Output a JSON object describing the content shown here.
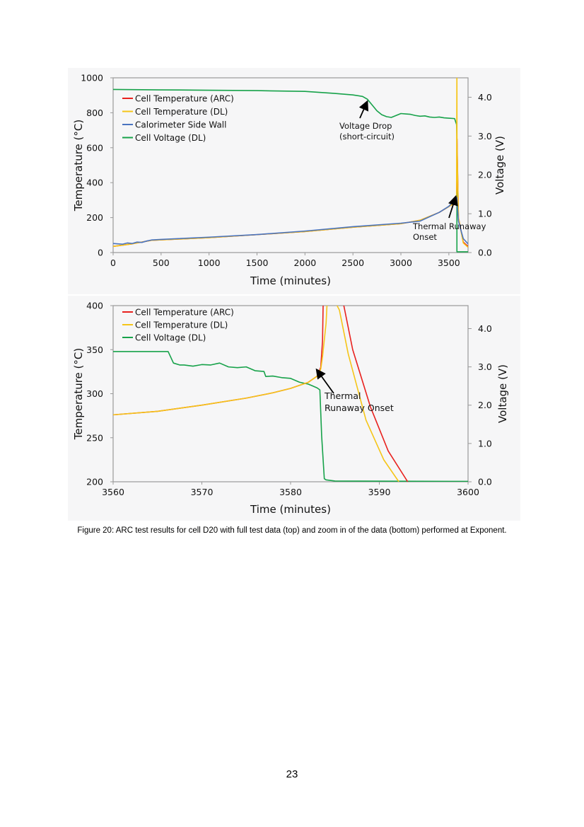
{
  "caption": "Figure 20: ARC test results for cell D20 with full test data (top) and zoom in of the data (bottom) performed at Exponent.",
  "page_number": "23",
  "chart_data": [
    {
      "type": "line",
      "name": "full-test",
      "xlabel": "Time (minutes)",
      "ylabel": "Temperature (°C)",
      "y2label": "Voltage (V)",
      "xlim": [
        0,
        3700
      ],
      "ylim": [
        0,
        1000
      ],
      "y2lim": [
        0,
        4.5
      ],
      "xticks": [
        0,
        500,
        1000,
        1500,
        2000,
        2500,
        3000,
        3500
      ],
      "yticks": [
        0,
        200,
        400,
        600,
        800,
        1000
      ],
      "y2ticks": [
        0,
        1,
        2,
        3,
        4
      ],
      "xtick_labels": [
        "0",
        "500",
        "1000",
        "1500",
        "2000",
        "2500",
        "3000",
        "3500"
      ],
      "ytick_labels": [
        "0",
        "200",
        "400",
        "600",
        "800",
        "1000"
      ],
      "y2tick_labels": [
        "0.0",
        "1.0",
        "2.0",
        "3.0",
        "4.0"
      ],
      "legend": [
        "Cell Temperature (ARC)",
        "Cell Temperature (DL)",
        "Calorimeter Side Wall",
        "Cell Voltage (DL)"
      ],
      "legend_position": "top-left",
      "colors": [
        "#e8211e",
        "#f5c518",
        "#4a74c0",
        "#17a24a"
      ],
      "series": [
        {
          "name": "Cell Temperature (ARC)",
          "axis": "y",
          "x": [
            0,
            200,
            400,
            1000,
            2000,
            2500,
            3000,
            3200,
            3400,
            3550,
            3580,
            3583.6,
            3585,
            3600,
            3650,
            3700
          ],
          "y": [
            35,
            50,
            70,
            85,
            120,
            145,
            165,
            185,
            230,
            280,
            320,
            400,
            650,
            200,
            60,
            35
          ]
        },
        {
          "name": "Cell Temperature (DL)",
          "axis": "y",
          "x": [
            0,
            200,
            400,
            1000,
            2000,
            2500,
            3000,
            3200,
            3400,
            3550,
            3580,
            3583.5,
            3584,
            3585,
            3600,
            3650,
            3700
          ],
          "y": [
            35,
            50,
            70,
            85,
            120,
            145,
            165,
            185,
            230,
            280,
            320,
            1000,
            1000,
            620,
            200,
            55,
            30
          ]
        },
        {
          "name": "Calorimeter Side Wall",
          "axis": "y",
          "x": [
            0,
            100,
            150,
            200,
            250,
            300,
            350,
            400,
            500,
            1000,
            1500,
            2000,
            2500,
            3000,
            3200,
            3400,
            3500,
            3583,
            3600,
            3650,
            3700
          ],
          "y": [
            52,
            48,
            55,
            52,
            60,
            58,
            66,
            72,
            75,
            88,
            103,
            123,
            148,
            168,
            180,
            230,
            265,
            315,
            180,
            80,
            50
          ]
        },
        {
          "name": "Cell Voltage (DL)",
          "axis": "y2",
          "x": [
            0,
            500,
            1000,
            1500,
            2000,
            2300,
            2500,
            2600,
            2650,
            2700,
            2750,
            2800,
            2850,
            2900,
            2950,
            3000,
            3050,
            3100,
            3150,
            3200,
            3250,
            3300,
            3350,
            3400,
            3450,
            3500,
            3560,
            3580,
            3583.6,
            3584,
            3700
          ],
          "y": [
            4.2,
            4.19,
            4.18,
            4.17,
            4.15,
            4.1,
            4.06,
            4.02,
            3.95,
            3.8,
            3.65,
            3.55,
            3.5,
            3.48,
            3.53,
            3.58,
            3.57,
            3.56,
            3.53,
            3.51,
            3.52,
            3.49,
            3.48,
            3.49,
            3.47,
            3.46,
            3.45,
            3.3,
            3.0,
            0.02,
            0.02
          ]
        }
      ],
      "annotations": [
        {
          "text": "Voltage Drop\n(short-circuit)",
          "x": 2650,
          "y2": 3.95
        },
        {
          "text": "Thermal Runaway\nOnset",
          "x": 3580,
          "y": 330
        }
      ]
    },
    {
      "type": "line",
      "name": "zoom",
      "xlabel": "Time (minutes)",
      "ylabel": "Temperature (°C)",
      "y2label": "Voltage (V)",
      "xlim": [
        3560,
        3600
      ],
      "ylim": [
        200,
        400
      ],
      "y2lim": [
        0,
        4.6
      ],
      "xticks": [
        3560,
        3570,
        3580,
        3590,
        3600
      ],
      "yticks": [
        200,
        250,
        300,
        350,
        400
      ],
      "y2ticks": [
        0,
        1,
        2,
        3,
        4
      ],
      "xtick_labels": [
        "3560",
        "3570",
        "3580",
        "3590",
        "3600"
      ],
      "ytick_labels": [
        "200",
        "250",
        "300",
        "350",
        "400"
      ],
      "y2tick_labels": [
        "0.0",
        "1.0",
        "2.0",
        "3.0",
        "4.0"
      ],
      "legend": [
        "Cell Temperature (ARC)",
        "Cell Temperature (DL)",
        "Cell Voltage (DL)"
      ],
      "legend_position": "top-left",
      "colors": [
        "#e8211e",
        "#f5c518",
        "#17a24a"
      ],
      "series": [
        {
          "name": "Cell Temperature (ARC)",
          "axis": "y",
          "x": [
            3560,
            3565,
            3570,
            3575,
            3578,
            3580,
            3582,
            3583,
            3583.4,
            3583.6,
            3583.7,
            3586,
            3587,
            3589,
            3591,
            3593.2
          ],
          "y": [
            276,
            280,
            287,
            295,
            301,
            306,
            313,
            320,
            330,
            360,
            420,
            400,
            350,
            285,
            235,
            200
          ]
        },
        {
          "name": "Cell Temperature (DL)",
          "axis": "y",
          "x": [
            3560,
            3565,
            3570,
            3575,
            3578,
            3580,
            3582,
            3583,
            3583.4,
            3583.6,
            3584,
            3584.2,
            3585.5,
            3586.5,
            3588.5,
            3590.5,
            3592.2
          ],
          "y": [
            276,
            280,
            287,
            295,
            301,
            306,
            313,
            320,
            328,
            342,
            380,
            420,
            395,
            345,
            270,
            225,
            200
          ]
        },
        {
          "name": "Cell Voltage (DL)",
          "axis": "y2",
          "x": [
            3560,
            3566.2,
            3566.5,
            3566.8,
            3567.5,
            3568,
            3569,
            3570,
            3571,
            3572,
            3573,
            3574,
            3575,
            3576,
            3577,
            3577.2,
            3578,
            3579,
            3580,
            3581,
            3582,
            3582.5,
            3583,
            3583.3,
            3583.5,
            3583.8,
            3584,
            3585,
            3600
          ],
          "y": [
            3.4,
            3.4,
            3.25,
            3.1,
            3.05,
            3.05,
            3.02,
            3.06,
            3.05,
            3.1,
            3.0,
            2.98,
            3.0,
            2.9,
            2.88,
            2.75,
            2.76,
            2.72,
            2.7,
            2.6,
            2.55,
            2.5,
            2.45,
            2.4,
            1.2,
            0.08,
            0.05,
            0.02,
            0.01
          ]
        }
      ],
      "annotations": [
        {
          "text": "Thermal\nRunaway Onset",
          "x": 3583,
          "y": 330
        }
      ]
    }
  ]
}
